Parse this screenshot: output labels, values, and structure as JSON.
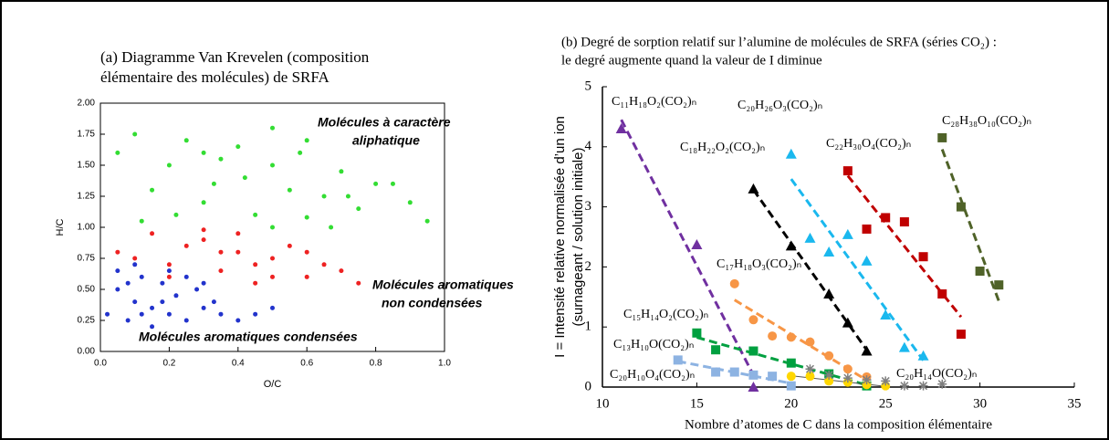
{
  "chart_data": [
    {
      "type": "scatter",
      "title": [
        "(a) Diagramme Van Krevelen (composition",
        "élémentaire des molécules) de SRFA"
      ],
      "xlabel": "O/C",
      "ylabel": "H/C",
      "xlim": [
        0,
        1.0
      ],
      "ylim": [
        0,
        2.0
      ],
      "xticks": [
        {
          "value": 0,
          "label": "0.0"
        },
        {
          "value": 0.2,
          "label": "0.2"
        },
        {
          "value": 0.4,
          "label": "0.4"
        },
        {
          "value": 0.6,
          "label": "0.6"
        },
        {
          "value": 0.8,
          "label": "0.8"
        },
        {
          "value": 1.0,
          "label": "1.0"
        }
      ],
      "yticks": [
        {
          "value": 0,
          "label": "0.00"
        },
        {
          "value": 0.25,
          "label": "0.25"
        },
        {
          "value": 0.5,
          "label": "0.50"
        },
        {
          "value": 0.75,
          "label": "0.75"
        },
        {
          "value": 1.0,
          "label": "1.00"
        },
        {
          "value": 1.25,
          "label": "1.25"
        },
        {
          "value": 1.5,
          "label": "1.50"
        },
        {
          "value": 1.75,
          "label": "1.75"
        },
        {
          "value": 2.0,
          "label": "2.00"
        }
      ],
      "annotations": [
        {
          "text": [
            "Molécules à caractère",
            "aliphatique"
          ],
          "color": "#33cc33"
        },
        {
          "text": [
            "Molécules aromatiques",
            "non condensées"
          ],
          "color": "#e02020"
        },
        {
          "text": [
            "Molécules aromatiques condensées"
          ],
          "color": "#2040c0"
        }
      ],
      "series": [
        {
          "color": "#33dd33",
          "marker": "dot",
          "x": [
            0.05,
            0.1,
            0.15,
            0.2,
            0.25,
            0.3,
            0.33,
            0.4,
            0.45,
            0.5,
            0.55,
            0.6,
            0.65,
            0.7,
            0.75,
            0.8,
            0.9,
            0.95,
            0.12,
            0.22,
            0.35,
            0.42,
            0.5,
            0.58,
            0.67,
            0.72,
            0.85,
            0.3,
            0.5,
            0.6
          ],
          "values": [
            1.6,
            1.75,
            1.3,
            1.5,
            1.7,
            1.2,
            1.35,
            1.65,
            1.1,
            1.5,
            1.3,
            1.7,
            1.25,
            1.45,
            1.15,
            1.35,
            1.2,
            1.05,
            1.05,
            1.1,
            1.55,
            1.4,
            1.8,
            1.6,
            1.0,
            1.25,
            1.35,
            1.6,
            1.0,
            1.08
          ]
        },
        {
          "color": "#ee2222",
          "marker": "dot",
          "x": [
            0.05,
            0.1,
            0.15,
            0.2,
            0.25,
            0.3,
            0.35,
            0.4,
            0.45,
            0.5,
            0.55,
            0.6,
            0.65,
            0.7,
            0.75,
            0.2,
            0.3,
            0.4,
            0.5,
            0.6,
            0.45,
            0.35
          ],
          "values": [
            0.8,
            0.75,
            0.95,
            0.7,
            0.85,
            0.9,
            0.65,
            0.8,
            0.7,
            0.75,
            0.85,
            0.6,
            0.7,
            0.65,
            0.55,
            0.6,
            0.98,
            0.95,
            0.6,
            0.8,
            0.55,
            0.8
          ]
        },
        {
          "color": "#2233cc",
          "marker": "dot",
          "x": [
            0.02,
            0.05,
            0.08,
            0.1,
            0.12,
            0.15,
            0.18,
            0.2,
            0.22,
            0.25,
            0.28,
            0.3,
            0.33,
            0.35,
            0.4,
            0.45,
            0.5,
            0.05,
            0.1,
            0.15,
            0.2,
            0.25,
            0.3,
            0.12,
            0.18,
            0.08
          ],
          "values": [
            0.3,
            0.5,
            0.25,
            0.4,
            0.6,
            0.35,
            0.55,
            0.3,
            0.45,
            0.25,
            0.5,
            0.35,
            0.4,
            0.3,
            0.25,
            0.3,
            0.35,
            0.65,
            0.7,
            0.2,
            0.65,
            0.6,
            0.55,
            0.3,
            0.4,
            0.55
          ]
        }
      ]
    },
    {
      "type": "scatter",
      "title": [
        "(b) Degré de sorption relatif sur l’alumine de molécules de SRFA (séries CO₂) :",
        "le degré augmente quand la valeur de I diminue"
      ],
      "xlabel": "Nombre d’atomes de C dans la composition élémentaire",
      "ylabel": [
        "I = Intensité relative normalisée d’un ion",
        "(surnageant / solution initiale)"
      ],
      "xlim": [
        10,
        35
      ],
      "ylim": [
        0,
        5
      ],
      "xticks": [
        10,
        15,
        20,
        25,
        30,
        35
      ],
      "yticks": [
        0,
        1,
        2,
        3,
        4,
        5
      ],
      "series": [
        {
          "name": "C₁₁H₁₈O₂(CO₂)ₙ",
          "color": "#7030a0",
          "marker": "triangle",
          "trendline": "dashed",
          "x": [
            11,
            15,
            18
          ],
          "values": [
            4.3,
            2.37,
            0
          ]
        },
        {
          "name": "C₁₈H₂₂O₂(CO₂)ₙ",
          "color": "#000000",
          "marker": "triangle",
          "trendline": "dashed",
          "x": [
            18,
            20,
            22,
            23,
            24
          ],
          "values": [
            3.3,
            2.35,
            1.55,
            1.07,
            0.6
          ]
        },
        {
          "name": "C₂₀H₂₆O₃(CO₂)ₙ",
          "color": "#1ab8ee",
          "marker": "triangle",
          "trendline": "dashed",
          "x": [
            20,
            21,
            22,
            23,
            24,
            25,
            26,
            27
          ],
          "values": [
            3.88,
            2.48,
            2.25,
            2.54,
            2.1,
            1.2,
            0.66,
            0.52
          ]
        },
        {
          "name": "C₂₂H₃₀O₄(CO₂)ₙ",
          "color": "#c00000",
          "marker": "square",
          "trendline": "dashed",
          "x": [
            23,
            24,
            25,
            26,
            27,
            28,
            29
          ],
          "values": [
            3.6,
            2.63,
            2.82,
            2.75,
            2.17,
            1.55,
            0.88
          ]
        },
        {
          "name": "C₂₈H₃₈O₁₀(CO₂)ₙ",
          "color": "#4f6228",
          "marker": "square",
          "trendline": "dashed",
          "x": [
            28,
            29,
            30,
            31
          ],
          "values": [
            4.15,
            3.0,
            1.93,
            1.7
          ]
        },
        {
          "name": "C₁₇H₁₈O₃(CO₂)ₙ",
          "color": "#f79646",
          "marker": "circle",
          "trendline": "dashed",
          "x": [
            17,
            18,
            19,
            20,
            21,
            22,
            23,
            24
          ],
          "values": [
            1.72,
            1.12,
            0.85,
            0.83,
            0.75,
            0.52,
            0.3,
            0.17
          ]
        },
        {
          "name": "C₁₅H₁₄O₂(CO₂)ₙ",
          "color": "#00a040",
          "marker": "square",
          "trendline": "dashed",
          "x": [
            15,
            16,
            18,
            20,
            22,
            24
          ],
          "values": [
            0.9,
            0.62,
            0.6,
            0.4,
            0.22,
            0.02
          ]
        },
        {
          "name": "C₁₃H₁₀O(CO₂)ₙ",
          "color": "#8db3e2",
          "marker": "square",
          "trendline": "dashed",
          "x": [
            14,
            16,
            17,
            18,
            19,
            20
          ],
          "values": [
            0.45,
            0.25,
            0.25,
            0.2,
            0.18,
            0.02
          ]
        },
        {
          "name": "C₂₀H₁₀O₄(CO₂)ₙ",
          "color": "#ffd700",
          "marker": "circle",
          "trendline": "solid",
          "x": [
            20,
            21,
            22,
            23,
            24,
            25
          ],
          "values": [
            0.18,
            0.18,
            0.1,
            0.08,
            0.04,
            0.02
          ]
        },
        {
          "name": "C₂₀H₁₄O(CO₂)ₙ",
          "color": "#7f7f7f",
          "marker": "asterisk",
          "x": [
            21,
            22,
            23,
            24,
            25,
            26,
            27,
            28
          ],
          "values": [
            0.3,
            0.2,
            0.15,
            0.12,
            0.1,
            0.02,
            0.02,
            0.05
          ]
        }
      ]
    }
  ]
}
